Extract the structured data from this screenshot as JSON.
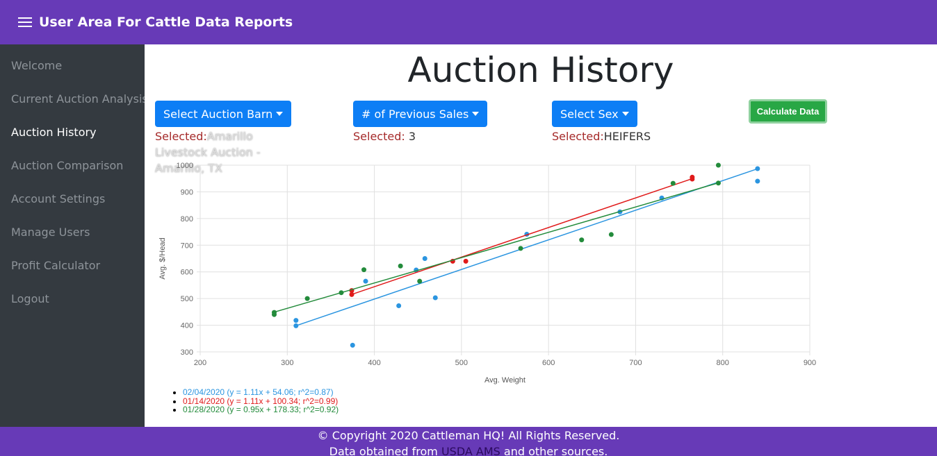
{
  "header": {
    "title": "User Area For Cattle Data Reports"
  },
  "sidebar": {
    "items": [
      {
        "label": "Welcome"
      },
      {
        "label": "Current Auction Analysis"
      },
      {
        "label": "Auction History"
      },
      {
        "label": "Auction Comparison"
      },
      {
        "label": "Account Settings"
      },
      {
        "label": "Manage Users"
      },
      {
        "label": "Profit Calculator"
      },
      {
        "label": "Logout"
      }
    ],
    "active": "Auction History"
  },
  "main": {
    "title": "Auction History",
    "barn_button": "Select Auction Barn",
    "sales_button": "# of Previous Sales",
    "sex_button": "Select Sex",
    "calculate_button": "Calculate Data",
    "selected_label": "Selected:",
    "selected_barn": "Amarillo Livestock Auction - Amarillo, TX",
    "selected_sales": "3",
    "selected_sex": "HEIFERS"
  },
  "footer": {
    "copyright": "© Copyright 2020 Cattleman HQ! All Rights Reserved.",
    "source_prefix": "Data obtained from",
    "source_link": "USDA AMS",
    "source_suffix": "and other sources."
  },
  "chart_data": {
    "type": "scatter",
    "xlabel": "Avg. Weight",
    "ylabel": "Avg. $/Head",
    "xlim": [
      200,
      900
    ],
    "ylim": [
      300,
      1000
    ],
    "x_ticks": [
      200,
      300,
      400,
      500,
      600,
      700,
      800,
      900
    ],
    "y_ticks": [
      300,
      400,
      500,
      600,
      700,
      800,
      900,
      1000
    ],
    "grid": true,
    "series": [
      {
        "name": "02/04/2020 (y = 1.11x + 54.06; r^2=0.87)",
        "color": "#2b95e0",
        "fit": {
          "slope": 1.11,
          "intercept": 54.06
        },
        "fit_range": [
          310,
          840
        ],
        "points": [
          [
            310,
            418
          ],
          [
            310,
            398
          ],
          [
            375,
            325
          ],
          [
            390,
            565
          ],
          [
            428,
            473
          ],
          [
            448,
            607
          ],
          [
            458,
            650
          ],
          [
            470,
            503
          ],
          [
            575,
            741
          ],
          [
            682,
            825
          ],
          [
            730,
            877
          ],
          [
            840,
            987
          ],
          [
            840,
            940
          ]
        ]
      },
      {
        "name": "01/14/2020 (y = 1.11x + 100.34; r^2=0.99)",
        "color": "#e01a1a",
        "fit": {
          "slope": 1.11,
          "intercept": 100.34
        },
        "fit_range": [
          374,
          765
        ],
        "points": [
          [
            374,
            530
          ],
          [
            374,
            515
          ],
          [
            490,
            640
          ],
          [
            505,
            640
          ],
          [
            765,
            955
          ],
          [
            765,
            948
          ]
        ]
      },
      {
        "name": "01/28/2020 (y = 0.95x + 178.33; r^2=0.92)",
        "color": "#238b3b",
        "fit": {
          "slope": 0.95,
          "intercept": 178.33
        },
        "fit_range": [
          285,
          795
        ],
        "points": [
          [
            285,
            448
          ],
          [
            285,
            440
          ],
          [
            323,
            500
          ],
          [
            362,
            522
          ],
          [
            388,
            608
          ],
          [
            430,
            622
          ],
          [
            452,
            565
          ],
          [
            568,
            688
          ],
          [
            638,
            720
          ],
          [
            672,
            740
          ],
          [
            743,
            932
          ],
          [
            795,
            933
          ],
          [
            795,
            1000
          ]
        ]
      }
    ]
  }
}
